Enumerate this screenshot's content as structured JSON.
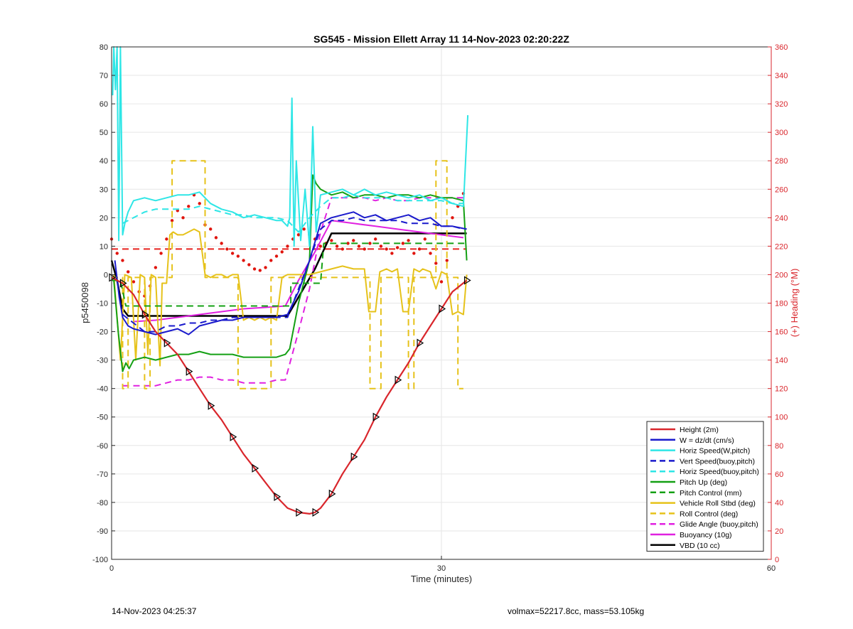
{
  "chart_data": {
    "type": "line",
    "title": "SG545 - Mission Ellett Array 11 14-Nov-2023 02:20:22Z",
    "xlabel": "Time (minutes)",
    "ylabel": "p5450098",
    "y2label": "(+) Heading (°M)",
    "xlim": [
      0,
      60
    ],
    "ylim": [
      -100,
      80
    ],
    "y2lim": [
      0,
      360
    ],
    "xticks": [
      0,
      30,
      60
    ],
    "yticks": [
      -100,
      -90,
      -80,
      -70,
      -60,
      -50,
      -40,
      -30,
      -20,
      -10,
      0,
      10,
      20,
      30,
      40,
      50,
      60,
      70,
      80
    ],
    "y2ticks": [
      0,
      20,
      40,
      60,
      80,
      100,
      120,
      140,
      160,
      180,
      200,
      220,
      240,
      260,
      280,
      300,
      320,
      340,
      360
    ],
    "grid": true,
    "legend_position": "bottom-right",
    "colors": {
      "right_axis": "#d9262c"
    },
    "series": [
      {
        "name": "Height (2m)",
        "color": "#d9262c",
        "style": "solid",
        "width": 2.2,
        "marker": "triangle",
        "x": [
          0,
          0.5,
          1,
          2,
          3,
          4,
          5,
          6,
          7,
          8,
          9,
          10,
          11,
          12,
          13,
          14,
          15,
          16,
          17,
          18,
          18.5,
          19,
          20,
          21,
          22,
          23,
          24,
          25,
          26,
          27,
          28,
          29,
          30,
          31,
          32.3
        ],
        "y": [
          -1,
          -2,
          -3,
          -7,
          -14,
          -20,
          -24,
          -28,
          -34,
          -40,
          -46,
          -51,
          -57,
          -63,
          -68,
          -73,
          -78,
          -82,
          -83.5,
          -84,
          -83.5,
          -82,
          -77,
          -70,
          -64,
          -58,
          -50,
          -43,
          -37,
          -31,
          -24,
          -18,
          -12,
          -6,
          -2
        ]
      },
      {
        "name": "W = dz/dt (cm/s)",
        "color": "#1a1acc",
        "style": "solid",
        "width": 2,
        "x": [
          0.3,
          0.7,
          1,
          1.5,
          2,
          3,
          4,
          5,
          6,
          7,
          8,
          9,
          10,
          11,
          12,
          13,
          14,
          15,
          16,
          17,
          18,
          19,
          20,
          21,
          22,
          23,
          24,
          25,
          26,
          27,
          28,
          29,
          30,
          31,
          32.3
        ],
        "y": [
          5,
          -8,
          -15,
          -18,
          -19,
          -20,
          -21,
          -20,
          -19,
          -21,
          -18,
          -17,
          -16,
          -16,
          -15,
          -15,
          -15,
          -15,
          -14,
          -6,
          5,
          18,
          20,
          21,
          22,
          20,
          21,
          19,
          20,
          21,
          19,
          20,
          17,
          17,
          16
        ]
      },
      {
        "name": "Horiz Speed(W,pitch)",
        "color": "#2ee6e6",
        "style": "solid",
        "width": 2,
        "x": [
          0.1,
          0.2,
          0.35,
          0.5,
          0.65,
          0.8,
          1,
          1.2,
          1.5,
          2,
          3,
          4,
          5,
          6,
          7,
          8,
          9,
          10,
          11,
          12,
          13,
          14,
          15,
          15.5,
          16,
          16.2,
          16.4,
          16.6,
          16.8,
          17.2,
          17.6,
          18,
          18.3,
          18.6,
          19,
          20,
          21,
          22,
          23,
          24,
          25,
          26,
          27,
          28,
          29,
          30,
          31,
          32,
          32.2,
          32.4
        ],
        "y": [
          63,
          80,
          65,
          80,
          12,
          80,
          14,
          18,
          22,
          26,
          27,
          26,
          27,
          28,
          28,
          29,
          25,
          23,
          22,
          20,
          21,
          20,
          19,
          19,
          17,
          20,
          62,
          10,
          40,
          12,
          30,
          10,
          52,
          15,
          28,
          29,
          30,
          28,
          30,
          28,
          29,
          28,
          27,
          28,
          26,
          27,
          25,
          24,
          40,
          56
        ]
      },
      {
        "name": "Vert Speed(buoy,pitch)",
        "color": "#1a1acc",
        "style": "dashed",
        "width": 2,
        "x": [
          1,
          2,
          3,
          4,
          5,
          6,
          7,
          8,
          9,
          10,
          11,
          12,
          13,
          14,
          15,
          16,
          17,
          18,
          19,
          20,
          21,
          22,
          23,
          24,
          25,
          26,
          27,
          28,
          29,
          30,
          31,
          32
        ],
        "y": [
          -14,
          -17,
          -20,
          -20,
          -18,
          -18,
          -17,
          -17,
          -16,
          -16,
          -15,
          -15,
          -15,
          -15,
          -15,
          -15,
          -5,
          5,
          16,
          19,
          19,
          20,
          19,
          19,
          19,
          19,
          18,
          18,
          18,
          17,
          17,
          16
        ]
      },
      {
        "name": "Horiz Speed(buoy,pitch)",
        "color": "#2ee6e6",
        "style": "dashed",
        "width": 2,
        "x": [
          1,
          2,
          3,
          4,
          5,
          6,
          7,
          8,
          9,
          10,
          11,
          12,
          13,
          14,
          15,
          16,
          17,
          18,
          19,
          20,
          21,
          22,
          23,
          24,
          25,
          26,
          27,
          28,
          29,
          30,
          31,
          32
        ],
        "y": [
          18,
          20,
          22,
          23,
          23,
          23,
          23,
          24,
          23,
          22,
          21,
          21,
          20,
          20,
          20,
          19,
          15,
          20,
          24,
          27,
          27,
          28,
          27,
          27,
          27,
          26,
          26,
          26,
          26,
          26,
          25,
          25
        ]
      },
      {
        "name": "Pitch Up (deg)",
        "color": "#14a014",
        "style": "solid",
        "width": 2,
        "x": [
          0.2,
          0.6,
          1,
          1.3,
          1.6,
          2,
          3,
          4,
          5,
          6,
          7,
          8,
          9,
          10,
          11,
          12,
          13,
          14,
          15,
          15.8,
          16.2,
          17,
          18,
          18.3,
          18.6,
          19,
          20,
          21,
          22,
          23,
          24,
          25,
          26,
          27,
          28,
          29,
          30,
          31,
          32,
          32.3
        ],
        "y": [
          -2,
          -20,
          -34,
          -31,
          -33,
          -30,
          -29,
          -30,
          -29,
          -28,
          -28,
          -27,
          -28,
          -28,
          -28,
          -29,
          -29,
          -29,
          -29,
          -28,
          -26,
          -10,
          5,
          35,
          32,
          30,
          28,
          29,
          27,
          28,
          28,
          27,
          28,
          28,
          27,
          28,
          27,
          27,
          26,
          5
        ]
      },
      {
        "name": "Pitch Control (mm)",
        "color": "#14a014",
        "style": "dashed",
        "width": 2,
        "x": [
          0,
          0.8,
          1.3,
          16,
          16.3,
          16.3,
          19,
          19.3,
          32.3
        ],
        "y": [
          -2,
          -2,
          -11,
          -11,
          -11,
          -3,
          -3,
          11,
          11
        ]
      },
      {
        "name": "Vehicle Roll Stbd (deg)",
        "color": "#e6c21a",
        "style": "solid",
        "width": 2,
        "x": [
          0.2,
          0.8,
          1.2,
          1.8,
          2.2,
          2.6,
          3,
          3.3,
          3.6,
          4,
          4.4,
          4.6,
          5,
          5.3,
          5.6,
          6,
          6.5,
          7,
          7.5,
          8,
          8.5,
          9,
          9.5,
          10,
          10.5,
          11,
          11.5,
          12,
          12.5,
          13,
          13.5,
          14,
          14.5,
          15,
          15.5,
          16,
          17,
          18,
          19,
          20,
          21,
          22,
          23,
          23.4,
          24,
          24.4,
          25,
          25.5,
          26,
          26.5,
          27,
          27.5,
          28,
          28.3,
          29,
          29.5,
          30,
          30.5,
          31,
          31.5,
          32,
          32.3
        ],
        "y": [
          0,
          -30,
          0,
          -1,
          -30,
          0,
          -1,
          -28,
          0,
          -1,
          -32,
          -3,
          -3,
          14,
          15,
          14,
          14,
          15,
          16,
          15,
          0,
          -1,
          0,
          0,
          -1,
          0,
          0,
          -16,
          -15,
          -16,
          -15,
          -16,
          -15,
          -16,
          -1,
          0,
          0,
          0,
          1,
          2,
          3,
          2,
          2,
          -13,
          -13,
          1,
          2,
          1,
          2,
          -13,
          -13,
          2,
          1,
          2,
          1,
          -5,
          1,
          0,
          -14,
          -13,
          -14,
          0
        ]
      },
      {
        "name": "Roll Control (deg)",
        "color": "#e6c21a",
        "style": "dashed",
        "width": 2,
        "x": [
          0,
          1,
          1,
          1.5,
          1.5,
          3,
          3,
          3.5,
          3.5,
          5.5,
          5.5,
          8.5,
          8.5,
          11.5,
          11.5,
          14.5,
          14.5,
          16,
          16,
          23.5,
          23.5,
          24.5,
          24.5,
          27,
          27,
          27.5,
          27.5,
          29.5,
          29.5,
          30.5,
          30.5,
          31.5,
          31.5,
          32
        ],
        "y": [
          -1,
          -1,
          -40,
          -40,
          -1,
          -1,
          -40,
          -40,
          -1,
          -1,
          40,
          40,
          -1,
          -1,
          -40,
          -40,
          -1,
          -1,
          -1,
          -1,
          -40,
          -40,
          -1,
          -1,
          -40,
          -40,
          -1,
          -1,
          40,
          40,
          -1,
          -1,
          -40,
          -40
        ]
      },
      {
        "name": "Glide Angle (buoy,pitch)",
        "color": "#e021e0",
        "style": "dashed",
        "width": 2,
        "x": [
          1,
          2,
          3,
          4,
          5,
          6,
          7,
          8,
          9,
          10,
          11,
          12,
          13,
          14,
          15,
          15.8,
          17,
          18,
          19,
          20,
          21,
          22,
          23,
          24,
          25,
          26,
          27,
          28,
          29,
          30,
          31,
          32
        ],
        "y": [
          -39,
          -39,
          -39,
          -39,
          -38,
          -37,
          -37,
          -36,
          -36,
          -37,
          -37,
          -38,
          -38,
          -38,
          -37,
          -37,
          -20,
          -5,
          15,
          27,
          27,
          27,
          27,
          26,
          27,
          26,
          26,
          27,
          27,
          27,
          27,
          27
        ]
      },
      {
        "name": "Buoyancy (10g)",
        "color": "#e021e0",
        "style": "solid",
        "width": 2,
        "x": [
          2,
          4,
          6,
          8,
          10,
          12,
          14,
          15.8,
          17,
          18.5,
          20,
          22,
          24,
          26,
          28,
          30,
          32
        ],
        "y": [
          -16.5,
          -16,
          -15,
          -14,
          -13,
          -12,
          -11.5,
          -11,
          -2,
          8,
          19,
          18,
          17,
          16,
          15,
          14,
          13
        ]
      },
      {
        "name": "VBD (10 cc)",
        "color": "#000000",
        "style": "solid",
        "width": 2.5,
        "x": [
          0,
          0.5,
          1,
          1.5,
          15.8,
          16,
          18.5,
          20,
          32.3
        ],
        "y": [
          5,
          -2,
          -12,
          -14.5,
          -14.5,
          -14.5,
          2,
          14.5,
          14.5
        ]
      },
      {
        "color": "#e6221e",
        "style": "dashed",
        "width": 2,
        "axis": "right",
        "x": [
          0,
          32.3
        ],
        "y": [
          218,
          218
        ]
      },
      {
        "color": "#e0140c",
        "style": "dots",
        "axis": "right",
        "x": [
          0,
          0.5,
          1,
          1.5,
          2,
          2.5,
          3,
          3.5,
          4,
          4.5,
          5,
          5.5,
          6,
          6.5,
          7,
          7.5,
          8,
          8.5,
          9,
          9.5,
          10,
          10.5,
          11,
          11.5,
          12,
          12.5,
          13,
          13.5,
          14,
          14.5,
          15,
          15.5,
          16,
          16.5,
          17,
          17.5,
          18,
          18.5,
          19,
          19.5,
          20,
          20.5,
          21,
          21.5,
          22,
          22.5,
          23,
          23.5,
          24,
          24.5,
          25,
          25.5,
          26,
          26.5,
          27,
          27.5,
          28,
          28.5,
          29,
          29.5,
          30,
          30.5,
          31,
          31.5,
          32
        ],
        "y": [
          225,
          215,
          210,
          202,
          195,
          188,
          185,
          192,
          205,
          215,
          225,
          238,
          245,
          240,
          248,
          256,
          250,
          235,
          232,
          226,
          222,
          218,
          215,
          213,
          210,
          207,
          204,
          203,
          205,
          210,
          213,
          216,
          220,
          225,
          228,
          232,
          228,
          225,
          220,
          222,
          224,
          220,
          218,
          222,
          224,
          220,
          218,
          222,
          225,
          220,
          218,
          215,
          219,
          222,
          224,
          215,
          218,
          225,
          215,
          208,
          195,
          210,
          240,
          248,
          257
        ]
      }
    ]
  },
  "legend": [
    {
      "label": "Height (2m)",
      "color": "#d9262c",
      "style": "solid"
    },
    {
      "label": "W = dz/dt (cm/s)",
      "color": "#1a1acc",
      "style": "solid"
    },
    {
      "label": "Horiz Speed(W,pitch)",
      "color": "#2ee6e6",
      "style": "solid"
    },
    {
      "label": "Vert Speed(buoy,pitch)",
      "color": "#1a1acc",
      "style": "dashed"
    },
    {
      "label": "Horiz Speed(buoy,pitch)",
      "color": "#2ee6e6",
      "style": "dashed"
    },
    {
      "label": "Pitch Up (deg)",
      "color": "#14a014",
      "style": "solid"
    },
    {
      "label": "Pitch Control (mm)",
      "color": "#14a014",
      "style": "dashed"
    },
    {
      "label": "Vehicle Roll Stbd (deg)",
      "color": "#e6c21a",
      "style": "solid"
    },
    {
      "label": "Roll Control (deg)",
      "color": "#e6c21a",
      "style": "dashed"
    },
    {
      "label": "Glide Angle (buoy,pitch)",
      "color": "#e021e0",
      "style": "dashed"
    },
    {
      "label": "Buoyancy (10g)",
      "color": "#e021e0",
      "style": "solid"
    },
    {
      "label": "VBD (10 cc)",
      "color": "#000000",
      "style": "solid"
    }
  ],
  "footer": {
    "left": "14-Nov-2023 04:25:37",
    "right": "volmax=52217.8cc, mass=53.105kg"
  }
}
